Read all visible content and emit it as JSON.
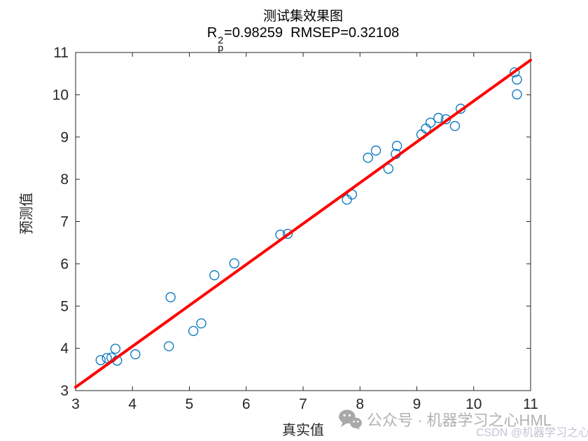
{
  "header": {
    "title": "测试集效果图",
    "metrics": {
      "r": "R",
      "sup": "2",
      "sub": "p",
      "rest": "=0.98259  RMSEP=0.32108"
    }
  },
  "chart_data": {
    "type": "scatter",
    "title": "测试集效果图",
    "subtitle": "R²p=0.98259  RMSEP=0.32108",
    "xlabel": "真实值",
    "ylabel": "预测值",
    "xlim": [
      3,
      11
    ],
    "ylim": [
      3,
      11
    ],
    "xticks": [
      3,
      4,
      5,
      6,
      7,
      8,
      9,
      10,
      11
    ],
    "yticks": [
      3,
      4,
      5,
      6,
      7,
      8,
      9,
      10,
      11
    ],
    "grid": false,
    "box": true,
    "axis_color": "#262626",
    "series": [
      {
        "type": "scatter",
        "marker": "open-circle",
        "color": "#0072BD",
        "points": [
          [
            3.44,
            3.72
          ],
          [
            3.55,
            3.77
          ],
          [
            3.63,
            3.78
          ],
          [
            3.7,
            3.99
          ],
          [
            3.73,
            3.71
          ],
          [
            4.05,
            3.86
          ],
          [
            4.64,
            4.05
          ],
          [
            4.67,
            5.21
          ],
          [
            5.07,
            4.41
          ],
          [
            5.21,
            4.59
          ],
          [
            5.44,
            5.73
          ],
          [
            5.79,
            6.01
          ],
          [
            6.6,
            6.69
          ],
          [
            6.73,
            6.71
          ],
          [
            7.77,
            7.52
          ],
          [
            7.86,
            7.64
          ],
          [
            8.14,
            8.51
          ],
          [
            8.28,
            8.68
          ],
          [
            8.5,
            8.25
          ],
          [
            8.63,
            8.6
          ],
          [
            8.65,
            8.79
          ],
          [
            9.08,
            9.06
          ],
          [
            9.16,
            9.2
          ],
          [
            9.24,
            9.34
          ],
          [
            9.38,
            9.45
          ],
          [
            9.51,
            9.42
          ],
          [
            9.67,
            9.26
          ],
          [
            9.77,
            9.67
          ],
          [
            10.72,
            10.53
          ],
          [
            10.76,
            10.36
          ],
          [
            10.76,
            10.01
          ]
        ]
      },
      {
        "type": "line",
        "color": "#FF0000",
        "width": 4,
        "points": [
          [
            3.0,
            3.08
          ],
          [
            11.0,
            10.82
          ]
        ]
      }
    ]
  },
  "watermark": {
    "icon": "wechat-icon",
    "line1": "公众号 · 机器学习之心HML",
    "line2": "CSDN @机器学习之心"
  }
}
